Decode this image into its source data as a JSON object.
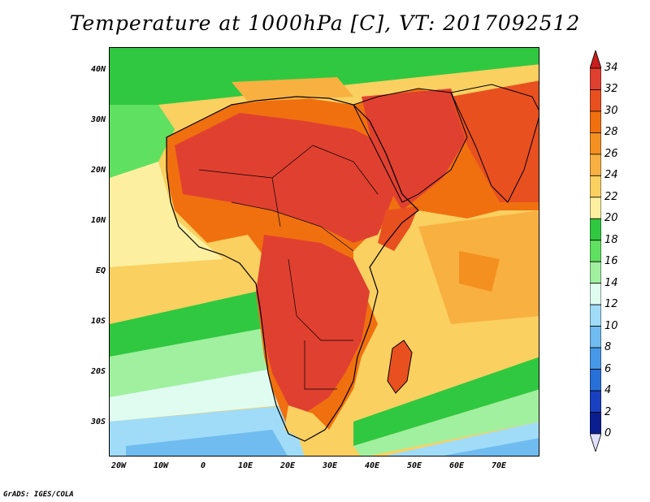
{
  "title": "Temperature at 1000hPa [C], VT: 2017092512",
  "credit": "GrADS: IGES/COLA",
  "map": {
    "region": "Africa and Middle East",
    "variable": "Temperature at 1000hPa",
    "units": "C",
    "lon_range": [
      -22,
      80
    ],
    "lat_range": [
      -37,
      45
    ]
  },
  "lat_labels": [
    "40N",
    "30N",
    "20N",
    "10N",
    "EQ",
    "10S",
    "20S",
    "30S"
  ],
  "lon_labels": [
    "20W",
    "10W",
    "0",
    "10E",
    "20E",
    "30E",
    "40E",
    "50E",
    "60E",
    "70E"
  ],
  "colorbar": {
    "labels": [
      "34",
      "32",
      "30",
      "28",
      "26",
      "24",
      "22",
      "20",
      "18",
      "16",
      "14",
      "12",
      "10",
      "8",
      "6",
      "4",
      "2",
      "0"
    ],
    "colors": [
      "#e04030",
      "#e85020",
      "#f07010",
      "#f49020",
      "#f8b040",
      "#fad060",
      "#fcf0a0",
      "#30c840",
      "#60e060",
      "#a0f0a0",
      "#e0fcf0",
      "#a0dcf8",
      "#70bcf0",
      "#4898e8",
      "#2870d8",
      "#1840c0",
      "#0a1e90",
      "#000060"
    ],
    "over_color": "#c81e1e",
    "under_color": "#e0e0ff"
  }
}
